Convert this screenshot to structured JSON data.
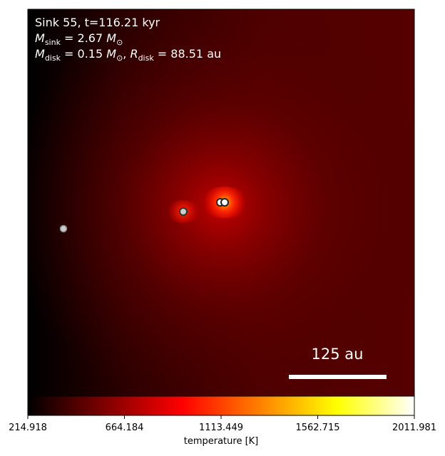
{
  "chart_data": {
    "type": "heatmap",
    "annotations": [
      [
        {
          "text": "Sink 55, t=116.21 kyr"
        }
      ],
      [
        {
          "text": "M",
          "italic": true
        },
        {
          "text": "sink",
          "sub": true
        },
        {
          "text": " = 2.67 "
        },
        {
          "text": "M",
          "italic": true
        },
        {
          "text": "⊙",
          "sub": true
        }
      ],
      [
        {
          "text": "M",
          "italic": true
        },
        {
          "text": "disk",
          "sub": true
        },
        {
          "text": " = 0.15 "
        },
        {
          "text": "M",
          "italic": true
        },
        {
          "text": "⊙",
          "sub": true
        },
        {
          "text": ", "
        },
        {
          "text": "R",
          "italic": true
        },
        {
          "text": "disk",
          "sub": true
        },
        {
          "text": " = 88.51 au"
        }
      ]
    ],
    "scale_bar": "125 au",
    "colorbar": {
      "label": "temperature [K]",
      "lim": [
        214.918,
        2011.981
      ],
      "ticks": [
        214.918,
        664.184,
        1113.449,
        1562.715,
        2011.981
      ],
      "colors": [
        "#000000",
        "#800000",
        "#ff0000",
        "#ff8000",
        "#ffff00",
        "#ffffff"
      ]
    }
  }
}
